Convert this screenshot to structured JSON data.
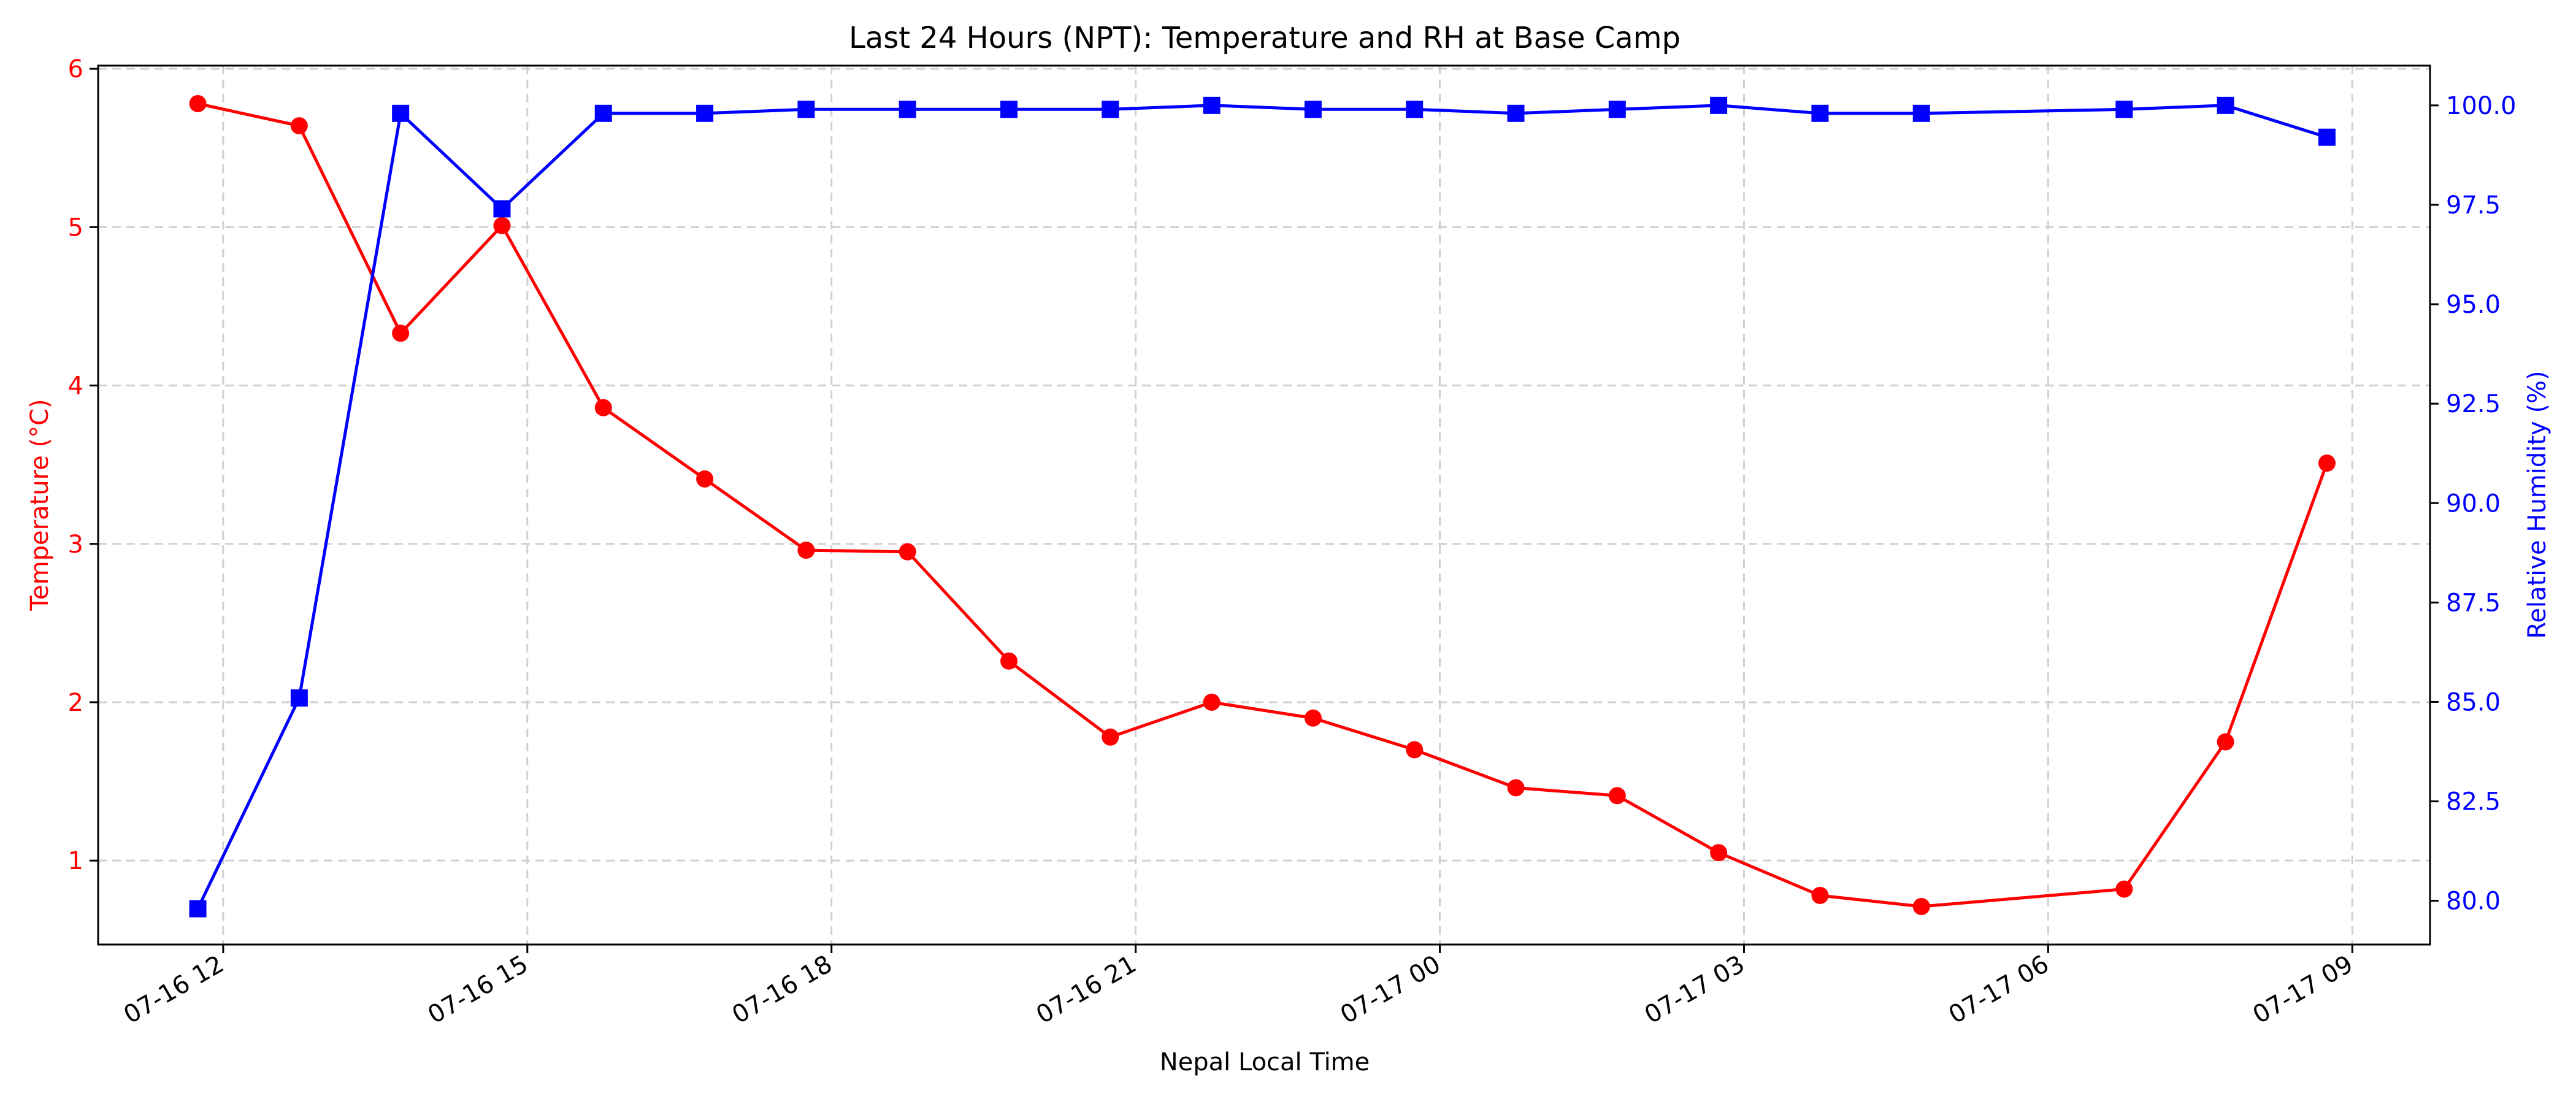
{
  "chart_data": {
    "type": "line",
    "title": "Last 24 Hours (NPT): Temperature and RH at Base Camp",
    "xlabel": "Nepal Local Time",
    "ylabel_left": "Temperature (°C)",
    "ylabel_right": "Relative Humidity (%)",
    "x_tick_labels": [
      "07-16 12",
      "07-16 15",
      "07-16 18",
      "07-16 21",
      "07-17 00",
      "07-17 03",
      "07-17 06",
      "07-17 09"
    ],
    "x_tick_times": [
      "2024-07-16T12:00",
      "2024-07-16T15:00",
      "2024-07-16T18:00",
      "2024-07-16T21:00",
      "2024-07-17T00:00",
      "2024-07-17T03:00",
      "2024-07-17T06:00",
      "2024-07-17T09:00"
    ],
    "x": [
      "2024-07-16T11:45",
      "2024-07-16T12:45",
      "2024-07-16T13:45",
      "2024-07-16T14:45",
      "2024-07-16T15:45",
      "2024-07-16T16:45",
      "2024-07-16T17:45",
      "2024-07-16T18:45",
      "2024-07-16T19:45",
      "2024-07-16T20:45",
      "2024-07-16T21:45",
      "2024-07-16T22:45",
      "2024-07-16T23:45",
      "2024-07-17T00:45",
      "2024-07-17T01:45",
      "2024-07-17T02:45",
      "2024-07-17T03:45",
      "2024-07-17T04:45",
      "2024-07-17T06:45",
      "2024-07-17T07:45",
      "2024-07-17T08:45"
    ],
    "series": [
      {
        "name": "Temperature",
        "axis": "left",
        "color": "#ff0000",
        "marker": "circle",
        "values": [
          5.78,
          5.64,
          4.33,
          5.01,
          3.86,
          3.41,
          2.96,
          2.95,
          2.26,
          1.78,
          2.0,
          1.9,
          1.7,
          1.46,
          1.41,
          1.05,
          0.78,
          0.71,
          0.82,
          1.75,
          3.51
        ]
      },
      {
        "name": "Relative Humidity",
        "axis": "right",
        "color": "#0000ff",
        "marker": "square",
        "values": [
          79.8,
          85.1,
          99.8,
          97.4,
          99.8,
          99.8,
          99.9,
          99.9,
          99.9,
          99.9,
          100.0,
          99.9,
          99.9,
          99.8,
          99.9,
          100.0,
          99.8,
          99.8,
          99.9,
          100.0,
          99.2
        ]
      }
    ],
    "ylim_left": [
      0.47,
      6.02
    ],
    "yticks_left": [
      "1",
      "2",
      "3",
      "4",
      "5",
      "6"
    ],
    "ylim_right": [
      78.9,
      101.0
    ],
    "yticks_right": [
      "80.0",
      "82.5",
      "85.0",
      "87.5",
      "90.0",
      "92.5",
      "95.0",
      "97.5",
      "100.0"
    ],
    "xlim": [
      "2024-07-16T10:46",
      "2024-07-17T09:46"
    ],
    "grid": true,
    "left_axis_color": "#ff0000",
    "right_axis_color": "#0000ff"
  }
}
